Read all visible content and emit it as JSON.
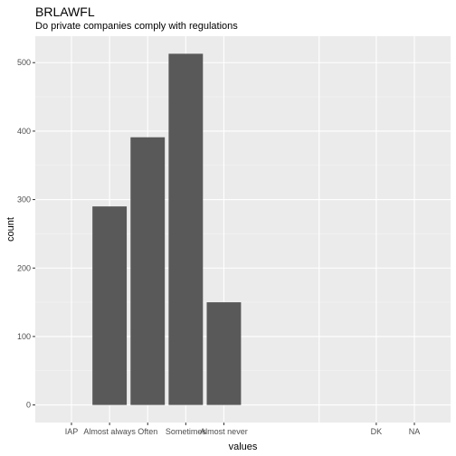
{
  "chart_data": {
    "type": "bar",
    "title": "BRLAWFL",
    "subtitle": "Do private companies comply with regulations",
    "xlabel": "values",
    "ylabel": "count",
    "x_ticks": [
      {
        "label": "IAP",
        "pos": 0.5
      },
      {
        "label": "Almost always",
        "pos": 1.5
      },
      {
        "label": "Often",
        "pos": 2.5
      },
      {
        "label": "Sometimes",
        "pos": 3.5
      },
      {
        "label": "Almost never",
        "pos": 4.5
      },
      {
        "label": "DK",
        "pos": 8.5
      },
      {
        "label": "NA",
        "pos": 9.5
      }
    ],
    "x_grid_major": [
      0.5,
      1.5,
      2.5,
      3.5,
      4.5,
      7,
      8.5,
      9.5
    ],
    "xlim": [
      -0.45,
      10.45
    ],
    "bars": [
      {
        "label": "Almost always",
        "x": 1.5,
        "value": 290
      },
      {
        "label": "Often",
        "x": 2.5,
        "value": 391
      },
      {
        "label": "Sometimes",
        "x": 3.5,
        "value": 513
      },
      {
        "label": "Almost never",
        "x": 4.5,
        "value": 150
      }
    ],
    "bar_width": 0.9,
    "yticks": [
      0,
      100,
      200,
      300,
      400,
      500
    ],
    "ylim": [
      -25.65,
      538.65
    ],
    "grid": true,
    "colors": {
      "bar": "#595959",
      "panel": "#ebebeb",
      "grid_major": "#ffffff",
      "grid_minor": "#f5f5f5"
    }
  }
}
